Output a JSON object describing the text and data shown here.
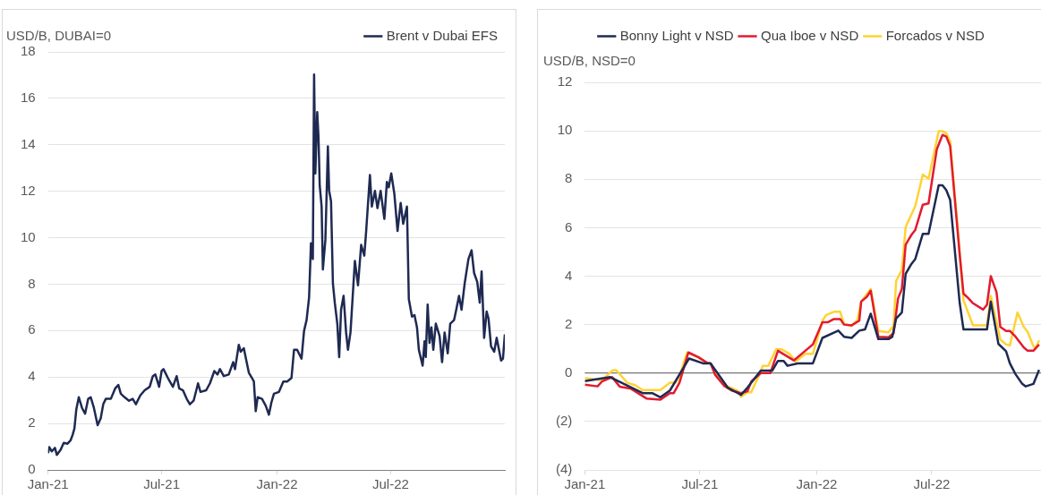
{
  "chart_data": [
    {
      "type": "line",
      "ylabel": "USD/B, DUBAI=0",
      "legend": "top right",
      "grid": "y",
      "xlim": [
        "2021-01-01",
        "2022-12-30"
      ],
      "xticks": [
        {
          "value": "2021-01-01",
          "label": "Jan-21"
        },
        {
          "value": "2021-07-01",
          "label": "Jul-21"
        },
        {
          "value": "2022-01-01",
          "label": "Jan-22"
        },
        {
          "value": "2022-07-01",
          "label": "Jul-22"
        }
      ],
      "ylim": [
        0,
        18
      ],
      "yticks": [
        0,
        2,
        4,
        6,
        8,
        10,
        12,
        14,
        16,
        18
      ],
      "x": [
        "2021-01-01",
        "2021-01-03",
        "2021-01-07",
        "2021-01-12",
        "2021-01-15",
        "2021-01-21",
        "2021-01-26",
        "2021-02-01",
        "2021-02-06",
        "2021-02-09",
        "2021-02-12",
        "2021-02-15",
        "2021-02-19",
        "2021-02-24",
        "2021-03-01",
        "2021-03-06",
        "2021-03-10",
        "2021-03-15",
        "2021-03-21",
        "2021-03-26",
        "2021-03-30",
        "2021-04-03",
        "2021-04-11",
        "2021-04-18",
        "2021-04-23",
        "2021-04-27",
        "2021-05-03",
        "2021-05-10",
        "2021-05-16",
        "2021-05-21",
        "2021-05-28",
        "2021-06-04",
        "2021-06-12",
        "2021-06-17",
        "2021-06-21",
        "2021-06-27",
        "2021-07-01",
        "2021-07-04",
        "2021-07-11",
        "2021-07-19",
        "2021-07-25",
        "2021-07-29",
        "2021-08-04",
        "2021-08-10",
        "2021-08-15",
        "2021-08-21",
        "2021-08-26",
        "2021-08-28",
        "2021-09-01",
        "2021-09-10",
        "2021-09-16",
        "2021-09-23",
        "2021-09-28",
        "2021-10-02",
        "2021-10-08",
        "2021-10-16",
        "2021-10-23",
        "2021-10-26",
        "2021-11-01",
        "2021-11-04",
        "2021-11-09",
        "2021-11-13",
        "2021-11-17",
        "2021-11-22",
        "2021-11-25",
        "2021-11-28",
        "2021-12-01",
        "2021-12-08",
        "2021-12-14",
        "2021-12-19",
        "2021-12-23",
        "2021-12-27",
        "2022-01-04",
        "2022-01-11",
        "2022-01-17",
        "2022-01-24",
        "2022-01-28",
        "2022-02-02",
        "2022-02-09",
        "2022-02-13",
        "2022-02-17",
        "2022-02-21",
        "2022-02-24",
        "2022-02-27",
        "2022-03-01",
        "2022-03-03",
        "2022-03-06",
        "2022-03-08",
        "2022-03-10",
        "2022-03-13",
        "2022-03-15",
        "2022-03-19",
        "2022-03-23",
        "2022-03-25",
        "2022-03-28",
        "2022-03-31",
        "2022-04-03",
        "2022-04-07",
        "2022-04-10",
        "2022-04-13",
        "2022-04-17",
        "2022-04-21",
        "2022-04-24",
        "2022-04-28",
        "2022-05-05",
        "2022-05-10",
        "2022-05-15",
        "2022-05-20",
        "2022-05-23",
        "2022-05-29",
        "2022-06-01",
        "2022-06-06",
        "2022-06-10",
        "2022-06-15",
        "2022-06-21",
        "2022-06-25",
        "2022-06-28",
        "2022-07-02",
        "2022-07-07",
        "2022-07-12",
        "2022-07-17",
        "2022-07-21",
        "2022-07-27",
        "2022-07-30",
        "2022-08-04",
        "2022-08-08",
        "2022-08-12",
        "2022-08-15",
        "2022-08-21",
        "2022-08-24",
        "2022-08-26",
        "2022-08-29",
        "2022-09-01",
        "2022-09-04",
        "2022-09-07",
        "2022-09-11",
        "2022-09-17",
        "2022-09-21",
        "2022-09-25",
        "2022-09-30",
        "2022-10-04",
        "2022-10-10",
        "2022-10-13",
        "2022-10-18",
        "2022-10-22",
        "2022-10-27",
        "2022-11-02",
        "2022-11-07",
        "2022-11-11",
        "2022-11-16",
        "2022-11-20",
        "2022-11-23",
        "2022-11-27",
        "2022-12-01",
        "2022-12-04",
        "2022-12-08",
        "2022-12-13",
        "2022-12-17",
        "2022-12-24",
        "2022-12-27",
        "2022-12-30"
      ],
      "series": [
        {
          "name": "Brent v Dubai EFS",
          "color": "#1f2a52",
          "values": [
            0.72,
            0.98,
            0.8,
            0.95,
            0.65,
            0.87,
            1.17,
            1.13,
            1.28,
            1.5,
            1.78,
            2.6,
            3.13,
            2.68,
            2.42,
            3.06,
            3.13,
            2.68,
            1.93,
            2.23,
            2.83,
            3.06,
            3.06,
            3.51,
            3.66,
            3.28,
            3.13,
            2.98,
            3.06,
            2.83,
            3.21,
            3.43,
            3.58,
            4.04,
            4.11,
            3.58,
            4.26,
            4.34,
            3.96,
            3.58,
            4.04,
            3.51,
            3.43,
            3.06,
            2.83,
            2.98,
            3.51,
            3.73,
            3.36,
            3.43,
            3.73,
            4.26,
            4.11,
            4.34,
            4.04,
            4.11,
            4.64,
            4.34,
            5.39,
            5.09,
            5.24,
            4.71,
            4.19,
            3.96,
            3.81,
            2.53,
            3.13,
            3.06,
            2.76,
            2.38,
            2.91,
            3.28,
            3.36,
            3.81,
            3.81,
            3.96,
            5.17,
            5.17,
            4.79,
            5.99,
            6.45,
            7.42,
            9.76,
            9.08,
            17.03,
            12.77,
            15.41,
            14.35,
            12.24,
            11.34,
            8.63,
            9.91,
            13.93,
            12.02,
            11.57,
            8.03,
            7.2,
            6.3,
            4.86,
            6.9,
            7.5,
            5.92,
            5.17,
            5.92,
            9.0,
            7.95,
            9.69,
            9.23,
            10.29,
            12.7,
            11.34,
            12.02,
            11.27,
            12.02,
            10.81,
            12.4,
            12.17,
            12.77,
            11.87,
            10.29,
            11.5,
            10.6,
            11.34,
            7.35,
            6.6,
            6.67,
            6.14,
            5.17,
            4.49,
            5.54,
            4.86,
            7.12,
            5.47,
            6.14,
            5.17,
            6.3,
            5.77,
            4.64,
            5.92,
            5.02,
            6.3,
            6.45,
            6.82,
            7.5,
            6.9,
            8.03,
            9.08,
            9.46,
            8.48,
            8.1,
            7.2,
            8.55,
            5.69,
            6.82,
            6.52,
            5.32,
            5.09,
            5.69,
            4.71,
            4.79,
            5.84
          ]
        }
      ]
    },
    {
      "type": "line",
      "ylabel": "USD/B, NSD=0",
      "legend": "top",
      "grid": "y",
      "xlim": [
        "2021-01-01",
        "2022-12-20"
      ],
      "xticks": [
        {
          "value": "2021-01-01",
          "label": "Jan-21"
        },
        {
          "value": "2021-07-01",
          "label": "Jul-21"
        },
        {
          "value": "2022-01-01",
          "label": "Jan-22"
        },
        {
          "value": "2022-07-01",
          "label": "Jul-22"
        }
      ],
      "ylim": [
        -4,
        12
      ],
      "yticks": [
        {
          "value": -4,
          "label": "(4)"
        },
        {
          "value": -2,
          "label": "(2)"
        },
        0,
        2,
        4,
        6,
        8,
        10,
        12
      ],
      "ref_lines": [
        {
          "axis": "y",
          "value": 0,
          "color": "#595959"
        }
      ],
      "series": [
        {
          "name": "Bonny Light v NSD",
          "color": "#1f2a52",
          "x": [
            "2021-01-01",
            "2021-02-10",
            "2021-04-02",
            "2021-04-17",
            "2021-04-30",
            "2021-05-15",
            "2021-06-14",
            "2021-07-06",
            "2021-07-18",
            "2021-08-14",
            "2021-09-04",
            "2021-09-14",
            "2021-10-05",
            "2021-10-23",
            "2021-11-01",
            "2021-11-10",
            "2021-11-16",
            "2021-12-02",
            "2021-12-26",
            "2022-01-10",
            "2022-02-04",
            "2022-02-13",
            "2022-02-25",
            "2022-03-09",
            "2022-03-18",
            "2022-03-27",
            "2022-04-08",
            "2022-04-24",
            "2022-04-30",
            "2022-05-06",
            "2022-05-15",
            "2022-05-21",
            "2022-05-30",
            "2022-06-05",
            "2022-06-17",
            "2022-06-26",
            "2022-07-12",
            "2022-07-18",
            "2022-07-24",
            "2022-07-30",
            "2022-08-14",
            "2022-08-20",
            "2022-09-26",
            "2022-10-02",
            "2022-10-14",
            "2022-10-26",
            "2022-11-01",
            "2022-11-10",
            "2022-11-20",
            "2022-11-26",
            "2022-12-08",
            "2022-12-17"
          ],
          "values": [
            -0.33,
            -0.17,
            -0.83,
            -0.83,
            -1.0,
            -0.72,
            0.6,
            0.4,
            0.4,
            -0.6,
            -0.9,
            -0.6,
            0.1,
            0.1,
            0.5,
            0.5,
            0.3,
            0.4,
            0.4,
            1.45,
            1.75,
            1.5,
            1.45,
            1.75,
            1.8,
            2.45,
            1.4,
            1.4,
            1.5,
            2.25,
            2.5,
            4.1,
            4.5,
            4.7,
            5.75,
            5.75,
            7.75,
            7.75,
            7.55,
            7.15,
            2.9,
            1.8,
            1.8,
            2.95,
            1.2,
            0.9,
            0.4,
            -0.05,
            -0.43,
            -0.55,
            -0.45,
            0.13
          ]
        },
        {
          "name": "Qua Iboe v NSD",
          "color": "#e31b2d",
          "x": [
            "2021-01-01",
            "2021-01-21",
            "2021-01-28",
            "2021-02-13",
            "2021-02-25",
            "2021-03-15",
            "2021-04-08",
            "2021-04-30",
            "2021-05-15",
            "2021-05-21",
            "2021-05-30",
            "2021-06-13",
            "2021-06-29",
            "2021-07-12",
            "2021-07-18",
            "2021-07-25",
            "2021-08-08",
            "2021-08-20",
            "2021-09-04",
            "2021-09-14",
            "2021-09-20",
            "2021-10-05",
            "2021-10-20",
            "2021-11-01",
            "2021-11-26",
            "2021-12-14",
            "2021-12-26",
            "2022-01-10",
            "2022-01-19",
            "2022-01-28",
            "2022-02-07",
            "2022-02-13",
            "2022-02-25",
            "2022-03-09",
            "2022-03-12",
            "2022-03-21",
            "2022-03-27",
            "2022-04-08",
            "2022-04-24",
            "2022-05-02",
            "2022-05-09",
            "2022-05-15",
            "2022-05-21",
            "2022-05-30",
            "2022-06-05",
            "2022-06-17",
            "2022-06-26",
            "2022-07-09",
            "2022-07-18",
            "2022-07-24",
            "2022-07-30",
            "2022-08-14",
            "2022-08-20",
            "2022-08-28",
            "2022-09-04",
            "2022-09-20",
            "2022-09-26",
            "2022-10-02",
            "2022-10-11",
            "2022-10-17",
            "2022-10-26",
            "2022-11-01",
            "2022-11-10",
            "2022-11-23",
            "2022-11-29",
            "2022-12-08",
            "2022-12-17"
          ],
          "values": [
            -0.48,
            -0.55,
            -0.35,
            -0.17,
            -0.56,
            -0.65,
            -1.05,
            -1.1,
            -0.83,
            -0.83,
            -0.4,
            0.85,
            0.65,
            0.43,
            0.4,
            -0.07,
            -0.52,
            -0.72,
            -0.83,
            -0.75,
            -0.35,
            0,
            0,
            0.92,
            0.52,
            0.92,
            1.18,
            2.1,
            2.1,
            2.23,
            2.23,
            2.0,
            1.97,
            2.16,
            2.95,
            3.15,
            3.4,
            1.5,
            1.48,
            1.64,
            3.08,
            3.47,
            5.3,
            5.7,
            5.9,
            6.95,
            7.0,
            9.24,
            9.83,
            9.76,
            9.37,
            4.9,
            3.28,
            3.08,
            2.88,
            2.62,
            2.82,
            4.0,
            3.34,
            1.9,
            1.74,
            1.74,
            1.5,
            1.05,
            0.92,
            0.92,
            1.18
          ]
        },
        {
          "name": "Forcados v NSD",
          "color": "#ffd335",
          "x": [
            "2021-01-01",
            "2021-01-28",
            "2021-02-13",
            "2021-02-19",
            "2021-03-09",
            "2021-03-21",
            "2021-04-02",
            "2021-04-30",
            "2021-05-15",
            "2021-05-24",
            "2021-05-30",
            "2021-06-11",
            "2021-06-29",
            "2021-07-12",
            "2021-07-18",
            "2021-07-30",
            "2021-08-11",
            "2021-08-29",
            "2021-09-04",
            "2021-09-14",
            "2021-09-20",
            "2021-10-05",
            "2021-10-08",
            "2021-10-17",
            "2021-10-29",
            "2021-11-07",
            "2021-11-19",
            "2021-11-29",
            "2021-12-14",
            "2021-12-26",
            "2022-01-10",
            "2022-01-16",
            "2022-01-28",
            "2022-02-07",
            "2022-02-13",
            "2022-02-25",
            "2022-03-06",
            "2022-03-12",
            "2022-03-27",
            "2022-04-08",
            "2022-04-24",
            "2022-05-02",
            "2022-05-06",
            "2022-05-15",
            "2022-05-21",
            "2022-06-05",
            "2022-06-17",
            "2022-06-26",
            "2022-07-12",
            "2022-07-18",
            "2022-07-24",
            "2022-07-30",
            "2022-08-11",
            "2022-08-20",
            "2022-09-04",
            "2022-09-26",
            "2022-10-02",
            "2022-10-17",
            "2022-10-26",
            "2022-11-01",
            "2022-11-13",
            "2022-11-23",
            "2022-11-29",
            "2022-12-08",
            "2022-12-11",
            "2022-12-17"
          ],
          "values": [
            -0.2,
            -0.3,
            0.1,
            0.13,
            -0.4,
            -0.5,
            -0.7,
            -0.7,
            -0.4,
            -0.4,
            -0.13,
            0.85,
            0.65,
            0.42,
            0.4,
            -0.2,
            -0.52,
            -0.72,
            -0.98,
            -0.79,
            -0.79,
            0.07,
            0.3,
            0.3,
            0.98,
            0.98,
            0.79,
            0.48,
            0.79,
            0.79,
            2.16,
            2.4,
            2.53,
            2.53,
            2.03,
            1.94,
            2.19,
            2.95,
            3.47,
            1.74,
            1.68,
            1.97,
            3.8,
            4.26,
            6.03,
            6.88,
            8.19,
            8.02,
            9.99,
            9.99,
            9.9,
            9.57,
            5.96,
            3.0,
            1.97,
            1.97,
            3.18,
            1.38,
            1.18,
            1.14,
            2.5,
            1.9,
            1.7,
            1.11,
            1.01,
            1.35
          ]
        }
      ]
    }
  ]
}
